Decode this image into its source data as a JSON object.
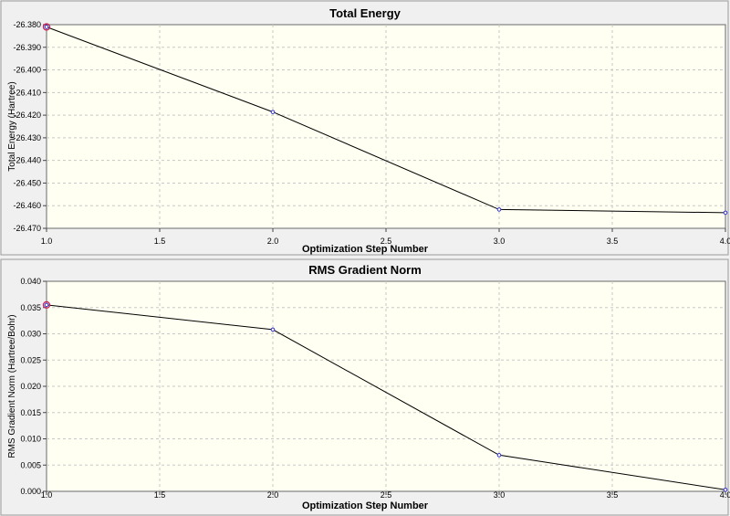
{
  "chart_data": [
    {
      "type": "line",
      "title": "Total Energy",
      "xlabel": "Optimization Step Number",
      "ylabel": "Total Energy (Hartree)",
      "xlim": [
        1.0,
        4.0
      ],
      "ylim": [
        -26.47,
        -26.38
      ],
      "xticks": [
        "1.0",
        "1.5",
        "2.0",
        "2.5",
        "3.0",
        "3.5",
        "4.0"
      ],
      "yticks": [
        "-26.380",
        "-26.390",
        "-26.400",
        "-26.410",
        "-26.420",
        "-26.430",
        "-26.440",
        "-26.450",
        "-26.460",
        "-26.470"
      ],
      "grid": true,
      "x": [
        1,
        2,
        3,
        4
      ],
      "y": [
        -26.381,
        -26.4186,
        -26.4617,
        -26.4631
      ],
      "highlight_index": 0
    },
    {
      "type": "line",
      "title": "RMS Gradient Norm",
      "xlabel": "Optimization Step Number",
      "ylabel": "RMS Gradient Norm (Hartree/Bohr)",
      "xlim": [
        1.0,
        4.0
      ],
      "ylim": [
        0.0,
        0.04
      ],
      "xticks": [
        "1.0",
        "1.5",
        "2.0",
        "2.5",
        "3.0",
        "3.5",
        "4.0"
      ],
      "yticks": [
        "0.000",
        "0.005",
        "0.010",
        "0.015",
        "0.020",
        "0.025",
        "0.030",
        "0.035",
        "0.040"
      ],
      "grid": true,
      "x": [
        1,
        2,
        3,
        4
      ],
      "y": [
        0.0355,
        0.0308,
        0.0069,
        0.0003
      ],
      "highlight_index": 0
    }
  ],
  "colors": {
    "plot_bg": "#fffff2",
    "grid": "#c8c8c8",
    "line": "#000000",
    "point": "#3333cc",
    "highlight": "#cc2255"
  }
}
